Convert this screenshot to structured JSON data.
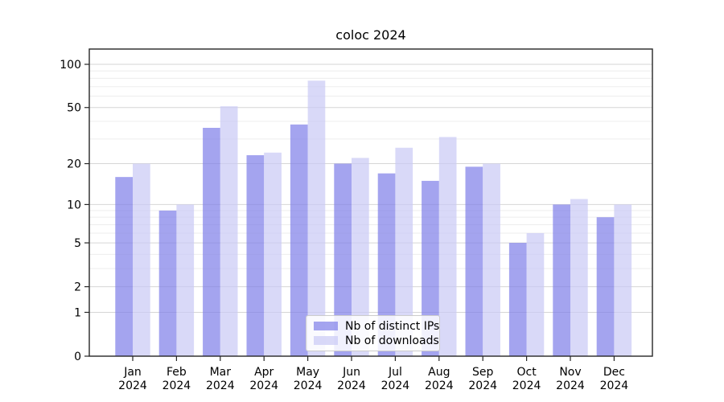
{
  "title": "coloc 2024",
  "chart_data": {
    "type": "bar",
    "title": "coloc 2024",
    "categories": [
      "Jan",
      "Feb",
      "Mar",
      "Apr",
      "May",
      "Jun",
      "Jul",
      "Aug",
      "Sep",
      "Oct",
      "Nov",
      "Dec"
    ],
    "x_tick_year": "2024",
    "series": [
      {
        "name": "Nb of distinct IPs",
        "values": [
          16,
          9,
          36,
          23,
          38,
          20,
          17,
          15,
          19,
          5,
          10,
          8
        ],
        "color": "#7e7ee8",
        "opacity": 0.7
      },
      {
        "name": "Nb of downloads",
        "values": [
          20,
          10,
          51,
          24,
          77,
          22,
          26,
          31,
          20,
          6,
          11,
          10
        ],
        "color": "#c9c9f5",
        "opacity": 0.7
      }
    ],
    "y_scale": "log1p",
    "y_major_ticks": [
      0,
      1,
      2,
      5,
      10,
      20,
      50,
      100
    ],
    "y_minor_gridlines": [
      3,
      4,
      6,
      7,
      8,
      9,
      30,
      40,
      60,
      70,
      80,
      90
    ],
    "ylim": [
      0,
      127.6
    ],
    "grid": true,
    "legend_position": "lower center",
    "colors": {
      "major_grid": "#d6d6d6",
      "minor_grid": "#ededed",
      "axis_frame": "#262626",
      "tick_text": "#000000"
    }
  }
}
